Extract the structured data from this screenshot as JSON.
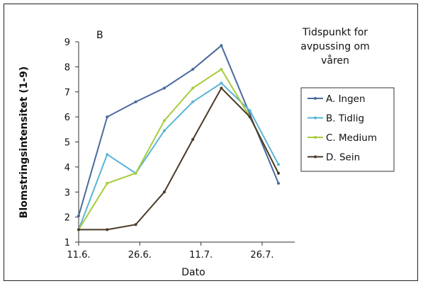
{
  "chart_data": {
    "type": "line",
    "panel_label": "B",
    "xlabel": "Dato",
    "ylabel": "Blomstringsintensitet (1-9)",
    "ylim": [
      1,
      9
    ],
    "yticks": [
      1,
      2,
      3,
      4,
      5,
      6,
      7,
      8,
      9
    ],
    "xlim": [
      "2011-06-11",
      "2011-08-03"
    ],
    "xtick_dates": [
      "2011-06-11",
      "2011-06-26",
      "2011-07-11",
      "2011-07-26"
    ],
    "xticks": [
      "11.6.",
      "26.6.",
      "11.7.",
      "26.7."
    ],
    "x": [
      "2011-06-11",
      "2011-06-18",
      "2011-06-25",
      "2011-07-02",
      "2011-07-09",
      "2011-07-16",
      "2011-07-23",
      "2011-07-30"
    ],
    "legend_title": [
      "Tidspunkt for",
      "avpussing om",
      "våren"
    ],
    "legend_position": "right",
    "grid": false,
    "series": [
      {
        "name": "A. Ingen",
        "color": "#4a6a9c",
        "values": [
          2.05,
          6.0,
          6.6,
          7.15,
          7.9,
          8.85,
          6.1,
          3.35
        ]
      },
      {
        "name": "B. Tidlig",
        "color": "#5ab4d6",
        "values": [
          1.5,
          4.5,
          3.75,
          5.45,
          6.6,
          7.35,
          6.25,
          4.1
        ]
      },
      {
        "name": "C. Medium",
        "color": "#a6cc3a",
        "values": [
          1.5,
          3.35,
          3.75,
          5.85,
          7.15,
          7.9,
          6.0,
          3.75
        ]
      },
      {
        "name": "D. Sein",
        "color": "#4a3a28",
        "values": [
          1.5,
          1.5,
          1.7,
          3.0,
          5.1,
          7.15,
          6.0,
          3.75
        ]
      }
    ]
  }
}
